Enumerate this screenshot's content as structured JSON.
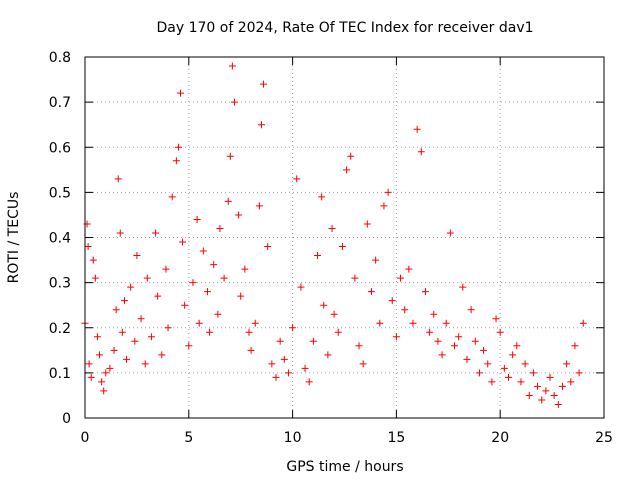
{
  "chart_data": {
    "type": "scatter",
    "title": "Day 170 of 2024, Rate Of TEC Index for receiver dav1",
    "xlabel": "GPS time / hours",
    "ylabel": "ROTI / TECUs",
    "xlim": [
      0,
      25
    ],
    "ylim": [
      0,
      0.8
    ],
    "xticks": [
      "0",
      "5",
      "10",
      "15",
      "20",
      "25"
    ],
    "yticks": [
      "0",
      "0.1",
      "0.2",
      "0.3",
      "0.4",
      "0.5",
      "0.6",
      "0.7",
      "0.8"
    ],
    "grid": true,
    "marker": "plus",
    "color": "#ff0000",
    "series": [
      {
        "x": [
          0.0,
          0.1,
          0.15,
          0.2,
          0.3,
          0.4,
          0.5,
          0.6,
          0.7,
          0.8,
          0.9,
          1.0,
          1.2,
          1.4,
          1.5,
          1.6,
          1.7,
          1.8,
          1.9,
          2.0,
          2.2,
          2.4,
          2.5,
          2.7,
          2.9,
          3.0,
          3.2,
          3.4,
          3.5,
          3.7,
          3.9,
          4.0,
          4.2,
          4.4,
          4.5,
          4.6,
          4.7,
          4.8,
          5.0,
          5.2,
          5.4,
          5.5,
          5.7,
          5.9,
          6.0,
          6.2,
          6.4,
          6.5,
          6.7,
          6.9,
          7.0,
          7.1,
          7.2,
          7.4,
          7.5,
          7.7,
          7.9,
          8.0,
          8.2,
          8.4,
          8.5,
          8.6,
          8.8,
          9.0,
          9.2,
          9.4,
          9.6,
          9.8,
          10.0,
          10.2,
          10.4,
          10.6,
          10.8,
          11.0,
          11.2,
          11.4,
          11.5,
          11.7,
          11.9,
          12.0,
          12.2,
          12.4,
          12.6,
          12.8,
          13.0,
          13.2,
          13.4,
          13.6,
          13.8,
          14.0,
          14.2,
          14.4,
          14.6,
          14.8,
          15.0,
          15.2,
          15.4,
          15.6,
          15.8,
          16.0,
          16.2,
          16.4,
          16.6,
          16.8,
          17.0,
          17.2,
          17.4,
          17.6,
          17.8,
          18.0,
          18.2,
          18.4,
          18.6,
          18.8,
          19.0,
          19.2,
          19.4,
          19.6,
          19.8,
          20.0,
          20.2,
          20.4,
          20.6,
          20.8,
          21.0,
          21.2,
          21.4,
          21.6,
          21.8,
          22.0,
          22.2,
          22.4,
          22.6,
          22.8,
          23.0,
          23.2,
          23.4,
          23.6,
          23.8,
          24.0
        ],
        "y": [
          0.21,
          0.43,
          0.38,
          0.12,
          0.09,
          0.35,
          0.31,
          0.18,
          0.14,
          0.08,
          0.06,
          0.1,
          0.11,
          0.15,
          0.24,
          0.53,
          0.41,
          0.19,
          0.26,
          0.13,
          0.29,
          0.17,
          0.36,
          0.22,
          0.12,
          0.31,
          0.18,
          0.41,
          0.27,
          0.14,
          0.33,
          0.2,
          0.49,
          0.57,
          0.6,
          0.72,
          0.39,
          0.25,
          0.16,
          0.3,
          0.44,
          0.21,
          0.37,
          0.28,
          0.19,
          0.34,
          0.23,
          0.42,
          0.31,
          0.48,
          0.58,
          0.78,
          0.7,
          0.45,
          0.27,
          0.33,
          0.19,
          0.15,
          0.21,
          0.47,
          0.65,
          0.74,
          0.38,
          0.12,
          0.09,
          0.17,
          0.13,
          0.1,
          0.2,
          0.53,
          0.29,
          0.11,
          0.08,
          0.17,
          0.36,
          0.49,
          0.25,
          0.14,
          0.42,
          0.23,
          0.19,
          0.38,
          0.55,
          0.58,
          0.31,
          0.16,
          0.12,
          0.43,
          0.28,
          0.35,
          0.21,
          0.47,
          0.5,
          0.26,
          0.18,
          0.31,
          0.24,
          0.33,
          0.21,
          0.64,
          0.59,
          0.28,
          0.19,
          0.23,
          0.17,
          0.14,
          0.21,
          0.41,
          0.16,
          0.18,
          0.29,
          0.13,
          0.24,
          0.17,
          0.1,
          0.15,
          0.12,
          0.08,
          0.22,
          0.19,
          0.11,
          0.09,
          0.14,
          0.16,
          0.08,
          0.12,
          0.05,
          0.1,
          0.07,
          0.04,
          0.06,
          0.09,
          0.05,
          0.03,
          0.07,
          0.12,
          0.08,
          0.16,
          0.1,
          0.21
        ]
      }
    ]
  }
}
